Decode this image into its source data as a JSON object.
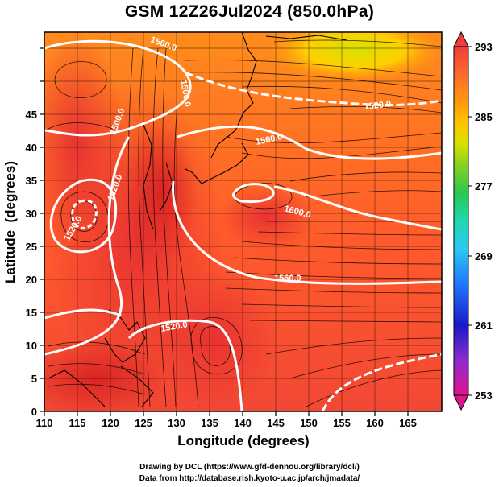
{
  "title": "GSM 12Z26Jul2024 (850.0hPa)",
  "xaxis": {
    "label": "Longitude (degrees)",
    "range": [
      110,
      170
    ],
    "ticks": [
      "110",
      "115",
      "120",
      "125",
      "130",
      "135",
      "140",
      "145",
      "150",
      "155",
      "160",
      "165"
    ]
  },
  "yaxis": {
    "label": "Latitude  (degrees)",
    "range": [
      0,
      50
    ],
    "ticks": [
      "0",
      "5",
      "10",
      "15",
      "20",
      "25",
      "30",
      "35",
      "40",
      "45"
    ]
  },
  "colorbar": {
    "ticks": [
      "253",
      "261",
      "269",
      "277",
      "285",
      "293"
    ],
    "range": [
      253,
      293
    ],
    "colors": [
      "#e0148c",
      "#8e2bd0",
      "#1a1ac8",
      "#1e78ff",
      "#2cc8f0",
      "#20d8b0",
      "#28c850",
      "#86d020",
      "#d8e000",
      "#ffc400",
      "#ff9a10",
      "#ff6a2a",
      "#f03c3c"
    ]
  },
  "contours": [
    {
      "label": "1500.0"
    },
    {
      "label": "1500.0"
    },
    {
      "label": "1520.0"
    },
    {
      "label": "1520.0"
    },
    {
      "label": "1560.0"
    },
    {
      "label": "1560.0"
    },
    {
      "label": "1520.0"
    },
    {
      "label": "1520.0"
    },
    {
      "label": "1600.0"
    },
    {
      "label": "1560.0"
    }
  ],
  "credits": [
    "Drawing by DCL (https://www.gfd-dennou.org/library/dcl/)",
    "Data from http://database.rish.kyoto-u.ac.jp/arch/jmadata/"
  ]
}
